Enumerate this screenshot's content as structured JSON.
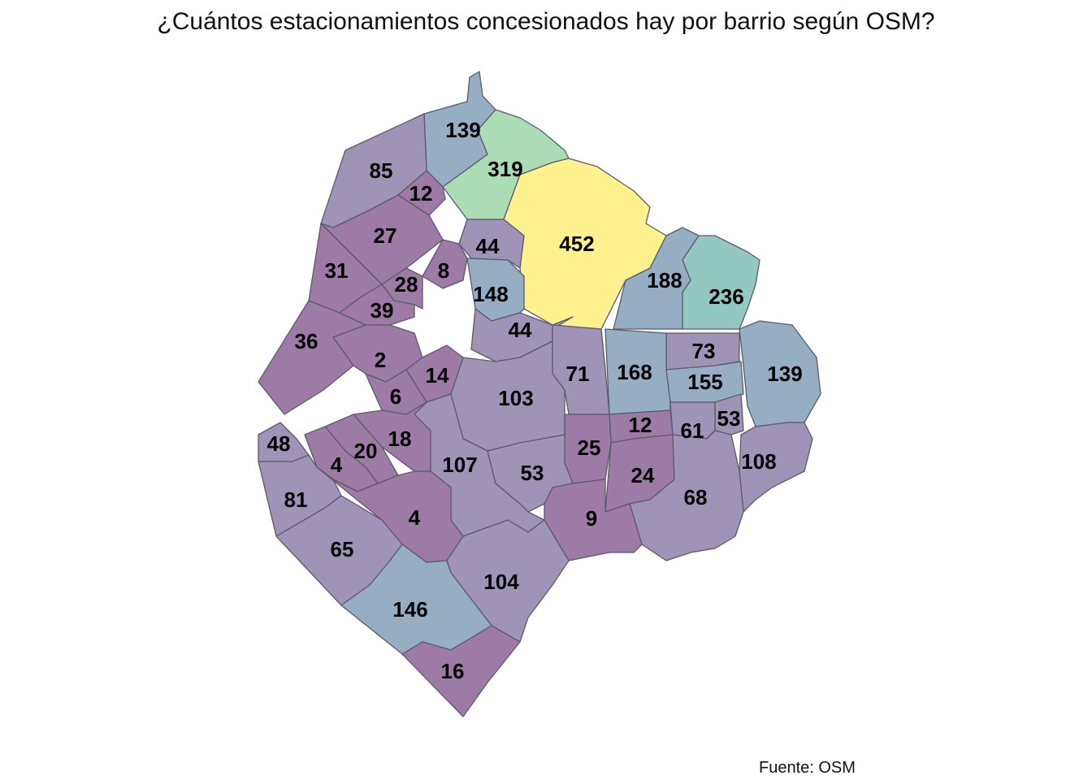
{
  "title": "¿Cuántos estacionamientos concesionados hay por barrio según OSM?",
  "caption": "Fuente: OSM",
  "colors": {
    "low": "#9e7aa6",
    "mid_low": "#a093b8",
    "mid": "#95aec4",
    "mid_high": "#93c8c0",
    "high": "#acdcb4",
    "max": "#fff28e",
    "border": "#5a5a6a"
  },
  "chart_data": {
    "type": "choropleth",
    "values": [
      139,
      319,
      85,
      12,
      27,
      452,
      44,
      8,
      31,
      28,
      188,
      236,
      148,
      39,
      36,
      44,
      73,
      2,
      14,
      71,
      168,
      139,
      155,
      103,
      6,
      53,
      12,
      61,
      18,
      25,
      48,
      20,
      4,
      107,
      53,
      108,
      24,
      81,
      4,
      68,
      9,
      65,
      104,
      146,
      16
    ]
  }
}
